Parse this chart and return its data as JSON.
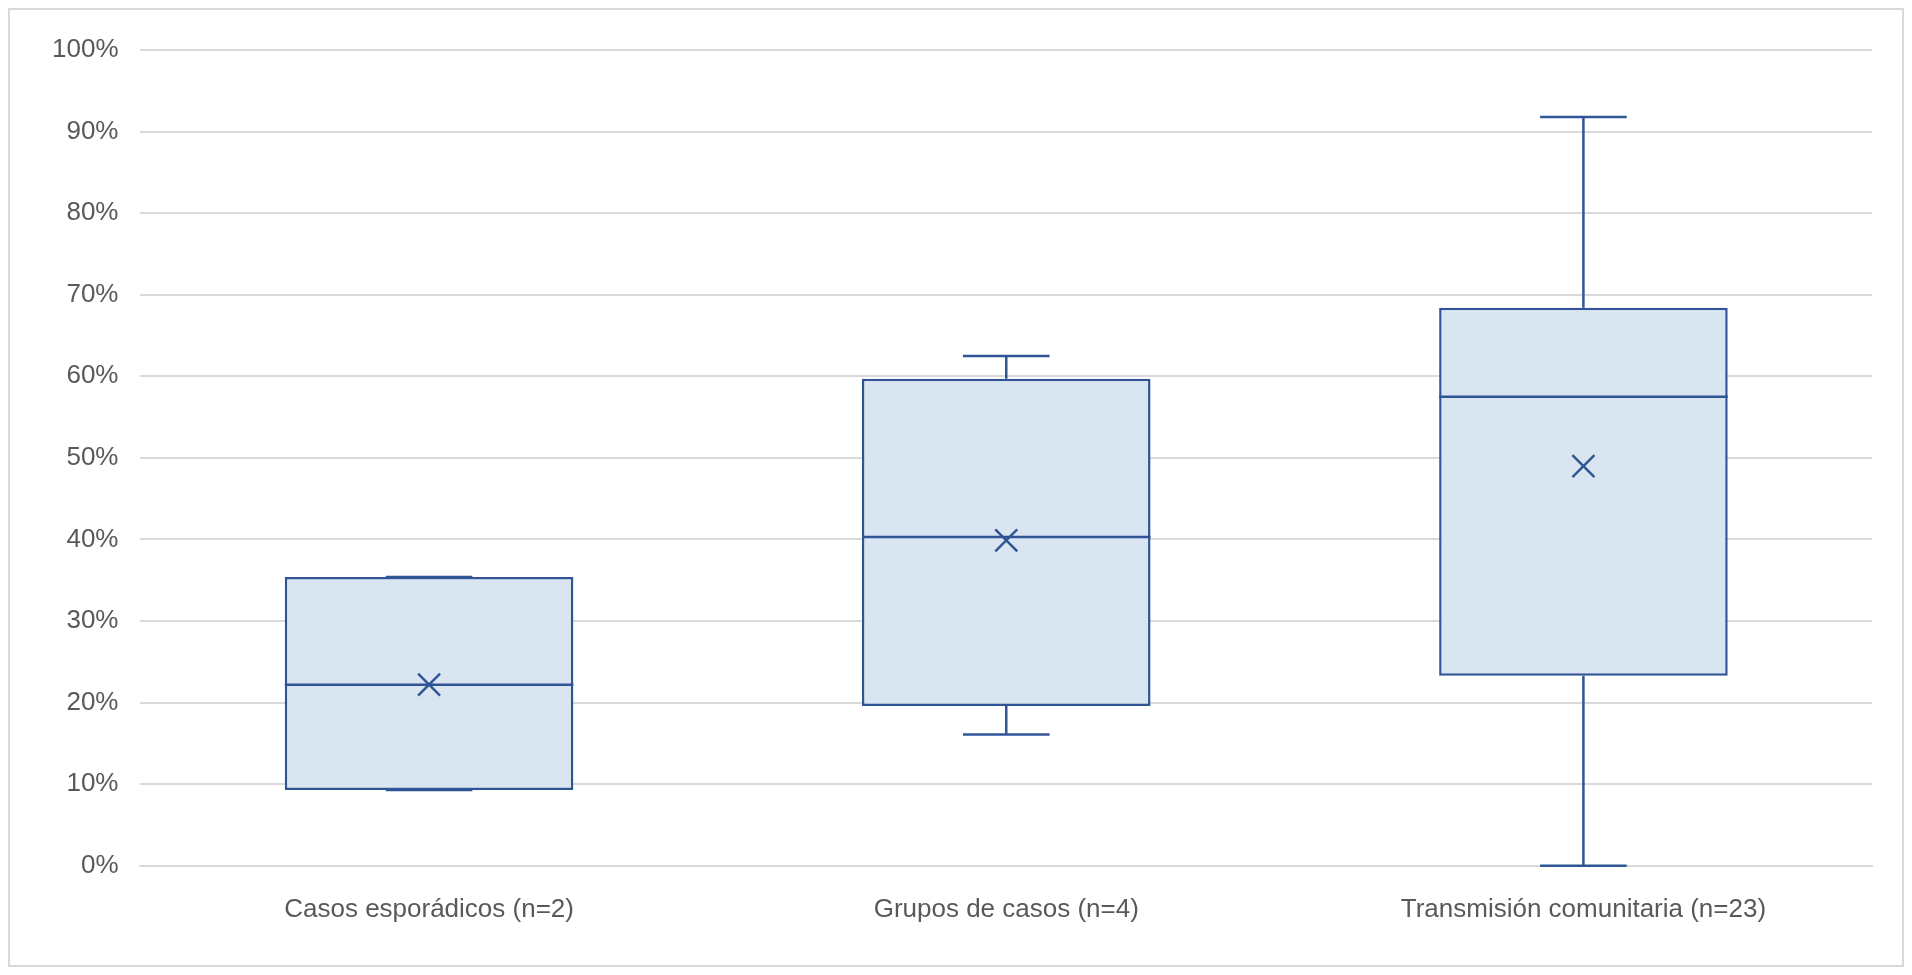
{
  "chart_data": {
    "type": "box",
    "categories": [
      "Casos esporádicos (n=2)",
      "Grupos de casos (n=4)",
      "Transmisión comunitaria (n=23)"
    ],
    "color": "#2f5597",
    "boxes": [
      {
        "low": 9.3,
        "q1": 9.3,
        "median": 22.2,
        "q3": 35.4,
        "high": 35.4,
        "mean": 22.2
      },
      {
        "low": 16.1,
        "q1": 19.6,
        "median": 40.3,
        "q3": 59.7,
        "high": 62.5,
        "mean": 39.9
      },
      {
        "low": 0,
        "q1": 23.3,
        "median": 57.5,
        "q3": 68.4,
        "high": 91.8,
        "mean": 49.0
      }
    ],
    "ylim": [
      0,
      100
    ],
    "yticks": [
      {
        "value": 0,
        "label": "0%"
      },
      {
        "value": 10,
        "label": "10%"
      },
      {
        "value": 20,
        "label": "20%"
      },
      {
        "value": 30,
        "label": "30%"
      },
      {
        "value": 40,
        "label": "40%"
      },
      {
        "value": 50,
        "label": "50%"
      },
      {
        "value": 60,
        "label": "60%"
      },
      {
        "value": 70,
        "label": "70%"
      },
      {
        "value": 80,
        "label": "80%"
      },
      {
        "value": 90,
        "label": "90%"
      },
      {
        "value": 100,
        "label": "100%"
      }
    ],
    "grid": "y",
    "legend": false
  }
}
